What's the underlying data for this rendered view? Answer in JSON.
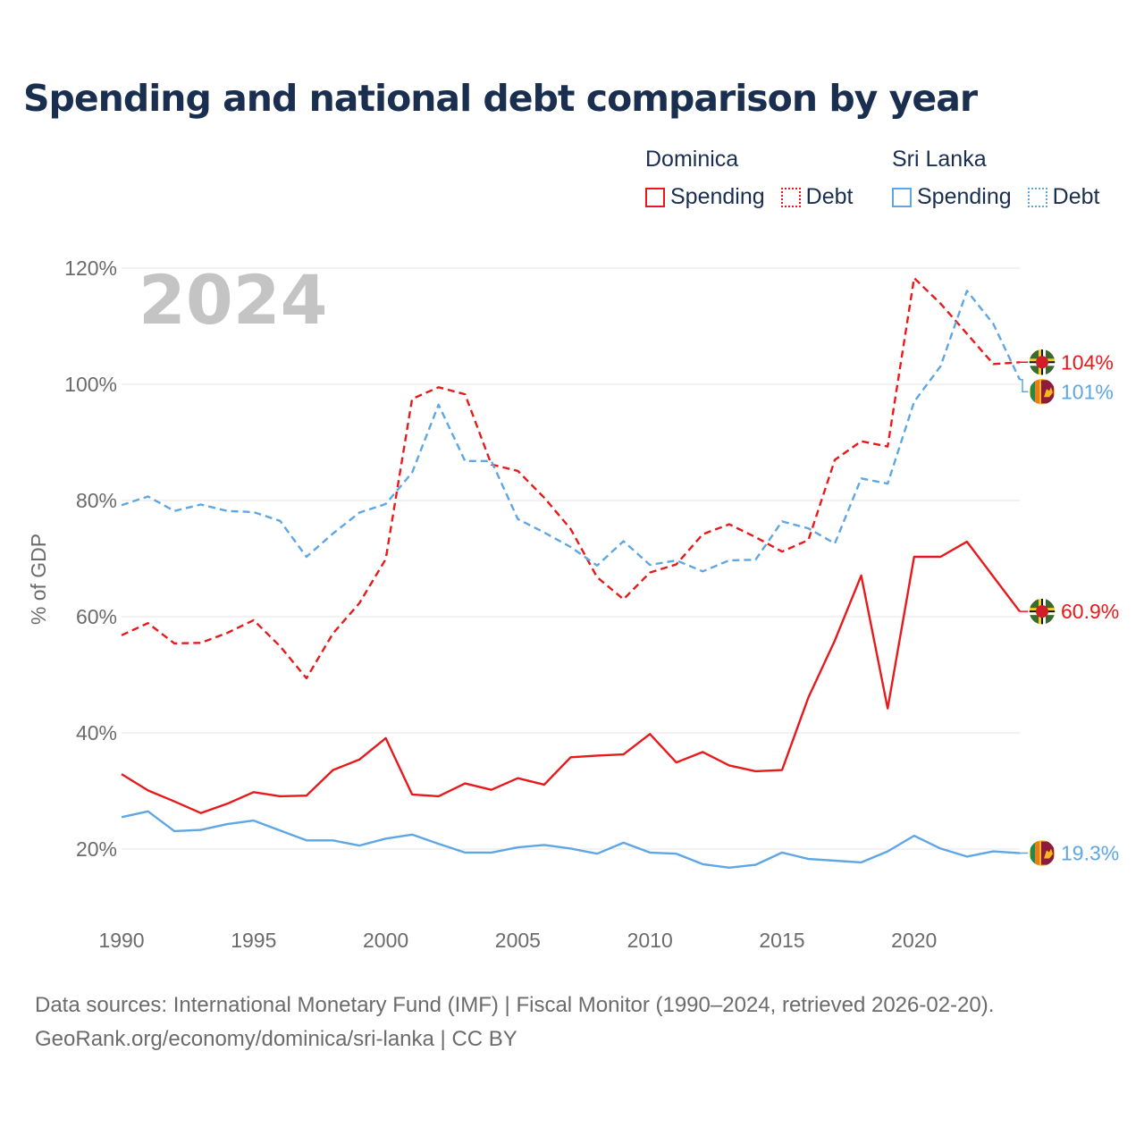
{
  "title": "Spending and national debt comparison by year",
  "legend": {
    "groups": [
      {
        "country": "Dominica",
        "color": "#e8191b",
        "items": [
          {
            "label": "Spending",
            "style": "solid"
          },
          {
            "label": "Debt",
            "style": "dotted"
          }
        ]
      },
      {
        "country": "Sri Lanka",
        "color": "#5ea6e4",
        "items": [
          {
            "label": "Spending",
            "style": "solid"
          },
          {
            "label": "Debt",
            "style": "dotted"
          }
        ]
      }
    ]
  },
  "chart_data": {
    "type": "line",
    "title": "Spending and national debt comparison by year",
    "watermark": "2024",
    "xlabel": "",
    "ylabel": "% of GDP",
    "xlim": [
      1990,
      2024
    ],
    "ylim": [
      10,
      120
    ],
    "yticks": [
      20,
      40,
      60,
      80,
      100,
      120
    ],
    "ytick_labels": [
      "20%",
      "40%",
      "60%",
      "80%",
      "100%",
      "120%"
    ],
    "xticks": [
      1990,
      1995,
      2000,
      2005,
      2010,
      2015,
      2020
    ],
    "xtick_labels": [
      "1990",
      "1995",
      "2000",
      "2005",
      "2010",
      "2015",
      "2020"
    ],
    "grid": true,
    "x": [
      1990,
      1991,
      1992,
      1993,
      1994,
      1995,
      1996,
      1997,
      1998,
      1999,
      2000,
      2001,
      2002,
      2003,
      2004,
      2005,
      2006,
      2007,
      2008,
      2009,
      2010,
      2011,
      2012,
      2013,
      2014,
      2015,
      2016,
      2017,
      2018,
      2019,
      2020,
      2021,
      2022,
      2023,
      2024
    ],
    "series": [
      {
        "name": "Dominica Spending",
        "country": "Dominica",
        "measure": "Spending",
        "color": "#e8191b",
        "dash": "solid",
        "values": [
          32.9,
          30.1,
          28.2,
          26.2,
          27.8,
          29.8,
          29.1,
          29.2,
          33.6,
          35.4,
          39.1,
          29.4,
          29.1,
          31.3,
          30.2,
          32.2,
          31.1,
          35.8,
          36.1,
          36.3,
          39.8,
          34.9,
          36.7,
          34.4,
          33.4,
          33.6,
          46.1,
          55.9,
          67.1,
          44.2,
          70.3,
          70.3,
          72.9,
          66.9,
          60.9
        ],
        "end_label": "60.9%",
        "flag": "dominica"
      },
      {
        "name": "Dominica Debt",
        "country": "Dominica",
        "measure": "Debt",
        "color": "#e8191b",
        "dash": "dashed",
        "values": [
          56.8,
          58.9,
          55.4,
          55.5,
          57.2,
          59.4,
          54.9,
          49.4,
          57.1,
          62.3,
          69.9,
          97.5,
          99.5,
          98.3,
          86.2,
          85.1,
          80.5,
          75.1,
          66.8,
          63.0,
          67.6,
          69.0,
          74.2,
          75.9,
          73.7,
          71.2,
          73.2,
          87.0,
          90.2,
          89.3,
          118.3,
          113.9,
          108.7,
          103.5,
          103.8
        ],
        "end_label": "104%",
        "flag": "dominica"
      },
      {
        "name": "Sri Lanka Spending",
        "country": "Sri Lanka",
        "measure": "Spending",
        "color": "#5ea6e4",
        "dash": "solid",
        "values": [
          25.5,
          26.5,
          23.1,
          23.3,
          24.3,
          24.9,
          23.2,
          21.5,
          21.5,
          20.6,
          21.8,
          22.5,
          20.9,
          19.4,
          19.4,
          20.3,
          20.7,
          20.1,
          19.2,
          21.1,
          19.4,
          19.2,
          17.4,
          16.8,
          17.3,
          19.4,
          18.3,
          18.0,
          17.7,
          19.6,
          22.3,
          20.1,
          18.7,
          19.6,
          19.3
        ],
        "end_label": "19.3%",
        "flag": "sri-lanka"
      },
      {
        "name": "Sri Lanka Debt",
        "country": "Sri Lanka",
        "measure": "Debt",
        "color": "#5ea6e4",
        "dash": "dashed",
        "values": [
          79.2,
          80.7,
          78.2,
          79.3,
          78.2,
          78.0,
          76.5,
          70.3,
          74.3,
          77.9,
          79.4,
          84.8,
          96.5,
          86.8,
          86.8,
          76.8,
          74.5,
          72.0,
          68.8,
          73.0,
          68.9,
          69.7,
          67.8,
          69.7,
          69.8,
          76.4,
          75.2,
          72.6,
          83.8,
          82.9,
          97.0,
          103.1,
          116.1,
          110.4,
          100.8
        ],
        "end_label": "101%",
        "flag": "sri-lanka"
      }
    ]
  },
  "footer": {
    "sources": "Data sources: International Monetary Fund (IMF) | Fiscal Monitor (1990–2024, retrieved 2026-02-20).",
    "credit": "GeoRank.org/economy/dominica/sri-lanka | CC BY"
  }
}
